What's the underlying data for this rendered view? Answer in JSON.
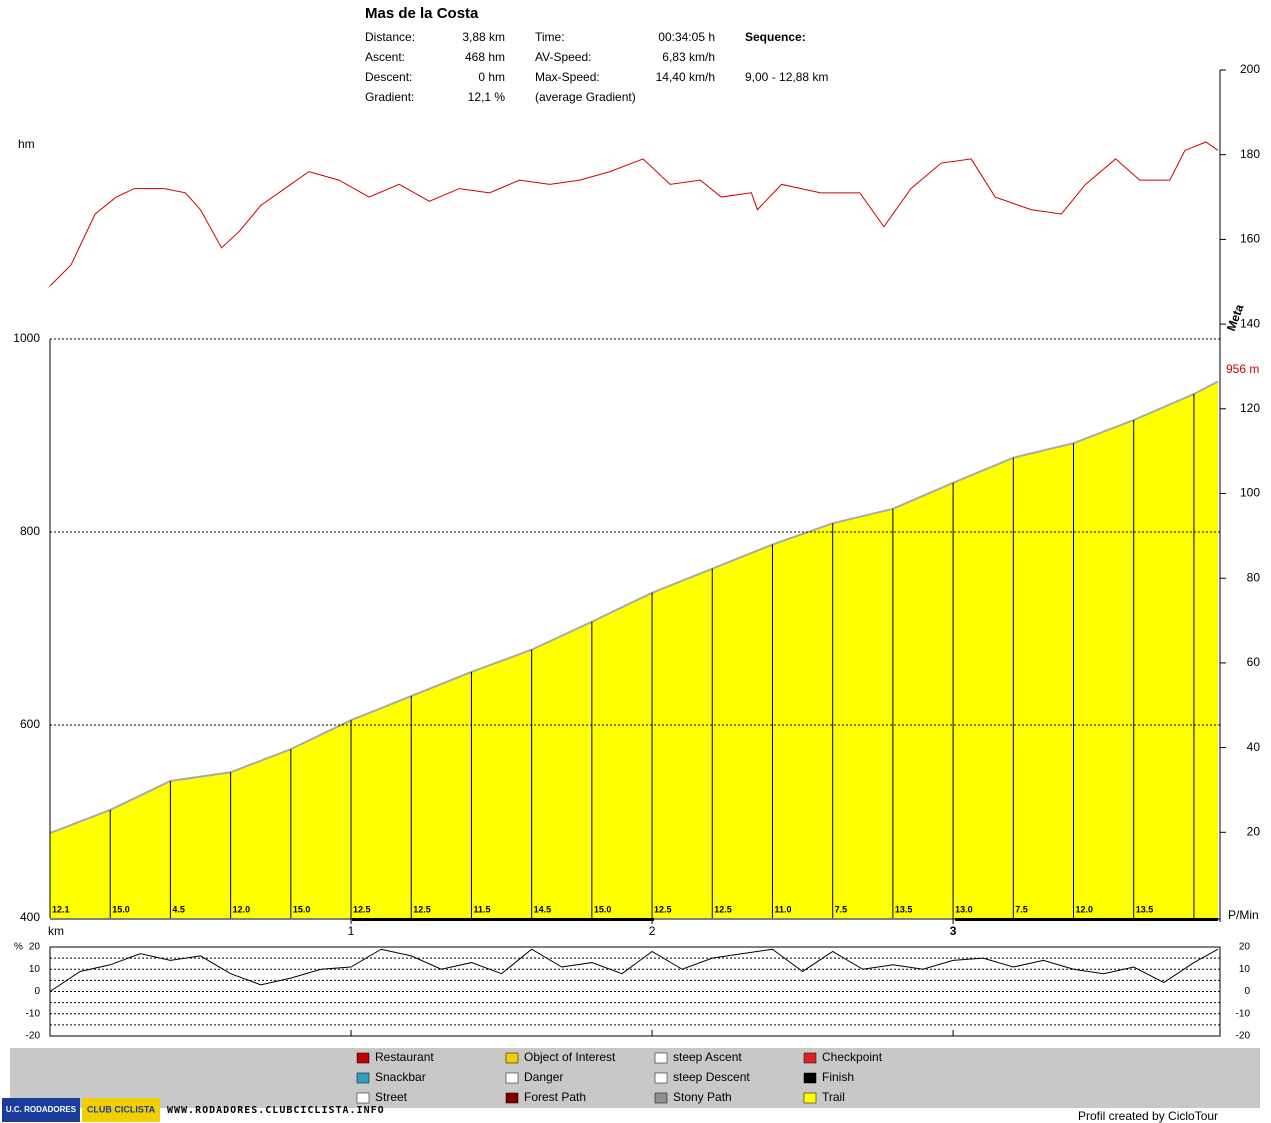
{
  "header": {
    "title": "Mas de la Costa",
    "rows": [
      [
        "Distance:",
        "3,88 km",
        "Time:",
        "00:34:05 h",
        "Sequence:"
      ],
      [
        "Ascent:",
        "468 hm",
        "AV-Speed:",
        "6,83 km/h"
      ],
      [
        "Descent:",
        "0 hm",
        "Max-Speed:",
        "14,40 km/h",
        "9,00 - 12,88 km"
      ],
      [
        "Gradient:",
        "12,1 %",
        "(average Gradient)"
      ]
    ]
  },
  "chart_data": [
    {
      "type": "area",
      "ylabel": "hm",
      "xlabel": "km",
      "x": [
        0,
        0.2,
        0.4,
        0.6,
        0.8,
        1.0,
        1.2,
        1.4,
        1.6,
        1.8,
        2.0,
        2.2,
        2.4,
        2.6,
        2.8,
        3.0,
        3.2,
        3.4,
        3.6,
        3.8,
        3.88
      ],
      "values": [
        488,
        512,
        542,
        551,
        575,
        605,
        630,
        655,
        678,
        707,
        737,
        762,
        787,
        809,
        824,
        851,
        877,
        892,
        916,
        943,
        956
      ],
      "end_label": "956 m",
      "segment_labels": [
        "12.1",
        "15.0",
        "4.5",
        "12.0",
        "15.0",
        "12.5",
        "12.5",
        "11.5",
        "14.5",
        "15.0",
        "12.5",
        "12.5",
        "11.0",
        "7.5",
        "13.5",
        "13.0",
        "7.5",
        "12.0",
        "13.5"
      ],
      "color": "#ffff00",
      "xlim": [
        0,
        3.88
      ],
      "xticks": [
        1,
        2,
        3
      ],
      "ylim": [
        400,
        1000
      ],
      "yticks": [
        400,
        600,
        800,
        1000
      ],
      "grid": true
    },
    {
      "type": "line",
      "ylabel": "P/Min",
      "annotation": "Meta",
      "x": [
        0,
        0.07,
        0.15,
        0.22,
        0.28,
        0.38,
        0.45,
        0.5,
        0.57,
        0.63,
        0.7,
        0.8,
        0.86,
        0.96,
        1.06,
        1.16,
        1.26,
        1.36,
        1.46,
        1.56,
        1.66,
        1.76,
        1.86,
        1.97,
        2.06,
        2.16,
        2.23,
        2.33,
        2.35,
        2.43,
        2.56,
        2.69,
        2.77,
        2.86,
        2.96,
        3.06,
        3.14,
        3.26,
        3.36,
        3.44,
        3.54,
        3.62,
        3.72,
        3.77,
        3.84,
        3.88
      ],
      "values": [
        149,
        154,
        166,
        170,
        172,
        172,
        171,
        167,
        158,
        162,
        168,
        173,
        176,
        174,
        170,
        173,
        169,
        172,
        171,
        174,
        173,
        174,
        176,
        179,
        173,
        174,
        170,
        171,
        167,
        173,
        171,
        171,
        163,
        172,
        178,
        179,
        170,
        167,
        166,
        173,
        179,
        174,
        174,
        181,
        183,
        181
      ],
      "color": "#cc0000",
      "xlim": [
        0,
        3.88
      ],
      "ylim": [
        0,
        200
      ],
      "yticks": [
        20,
        40,
        60,
        80,
        100,
        120,
        140,
        160,
        180,
        200
      ]
    },
    {
      "type": "line",
      "ylabel": "%",
      "x": [
        0,
        0.1,
        0.2,
        0.3,
        0.4,
        0.5,
        0.6,
        0.7,
        0.8,
        0.9,
        1.0,
        1.1,
        1.2,
        1.3,
        1.4,
        1.5,
        1.6,
        1.7,
        1.8,
        1.9,
        2.0,
        2.1,
        2.2,
        2.3,
        2.4,
        2.5,
        2.6,
        2.7,
        2.8,
        2.9,
        3.0,
        3.1,
        3.2,
        3.3,
        3.4,
        3.5,
        3.6,
        3.7,
        3.8,
        3.88
      ],
      "values": [
        0,
        9,
        12,
        17,
        14,
        16,
        8,
        3,
        6,
        10,
        11,
        19,
        16,
        10,
        13,
        8,
        19,
        11,
        13,
        8,
        18,
        10,
        15,
        17,
        19,
        9,
        18,
        10,
        12,
        10,
        14,
        15,
        11,
        14,
        10,
        8,
        11,
        4,
        13,
        19
      ],
      "color": "#000000",
      "xlim": [
        0,
        3.88
      ],
      "ylim": [
        -20,
        20
      ],
      "yticks": [
        -20,
        -10,
        0,
        10,
        20
      ],
      "grid_lines": [
        -15,
        -10,
        -5,
        0,
        5,
        10,
        15
      ]
    }
  ],
  "legend": [
    [
      "Restaurant",
      "Snackbar",
      "Street"
    ],
    [
      "Object of Interest",
      "Danger",
      "Forest Path"
    ],
    [
      "steep Ascent",
      "steep Descent",
      "Stony Path"
    ],
    [
      "Checkpoint",
      "Finish",
      "Trail"
    ]
  ],
  "footer": {
    "credit": "Profil created by CicloTour",
    "url": "WWW.RODADORES.CLUBCICLISTA.INFO",
    "logo1": "U.C. RODADORES",
    "logo2": "CLUB CICLISTA"
  }
}
